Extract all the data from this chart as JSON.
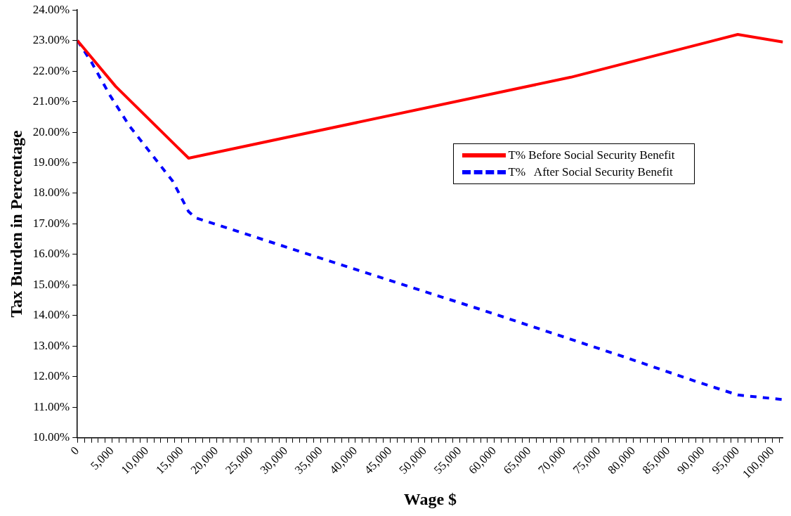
{
  "chart_data": {
    "type": "line",
    "xlabel": "Wage $",
    "ylabel": "Tax Burden in Percentage",
    "xlim": [
      0,
      101500
    ],
    "ylim": [
      10,
      24
    ],
    "xticks": [
      {
        "value": 0,
        "label": "0"
      },
      {
        "value": 1000,
        "label": null
      },
      {
        "value": 2000,
        "label": null
      },
      {
        "value": 3000,
        "label": null
      },
      {
        "value": 4000,
        "label": null
      },
      {
        "value": 5000,
        "label": "5,000"
      },
      {
        "value": 6000,
        "label": null
      },
      {
        "value": 7000,
        "label": null
      },
      {
        "value": 8000,
        "label": null
      },
      {
        "value": 9000,
        "label": null
      },
      {
        "value": 10000,
        "label": "10,000"
      },
      {
        "value": 11000,
        "label": null
      },
      {
        "value": 12000,
        "label": null
      },
      {
        "value": 13000,
        "label": null
      },
      {
        "value": 14000,
        "label": null
      },
      {
        "value": 15000,
        "label": "15,000"
      },
      {
        "value": 16000,
        "label": null
      },
      {
        "value": 17000,
        "label": null
      },
      {
        "value": 18000,
        "label": null
      },
      {
        "value": 19000,
        "label": null
      },
      {
        "value": 20000,
        "label": "20,000"
      },
      {
        "value": 21000,
        "label": null
      },
      {
        "value": 22000,
        "label": null
      },
      {
        "value": 23000,
        "label": null
      },
      {
        "value": 24000,
        "label": null
      },
      {
        "value": 25000,
        "label": "25,000"
      },
      {
        "value": 26000,
        "label": null
      },
      {
        "value": 27000,
        "label": null
      },
      {
        "value": 28000,
        "label": null
      },
      {
        "value": 29000,
        "label": null
      },
      {
        "value": 30000,
        "label": "30,000"
      },
      {
        "value": 31000,
        "label": null
      },
      {
        "value": 32000,
        "label": null
      },
      {
        "value": 33000,
        "label": null
      },
      {
        "value": 34000,
        "label": null
      },
      {
        "value": 35000,
        "label": "35,000"
      },
      {
        "value": 36000,
        "label": null
      },
      {
        "value": 37000,
        "label": null
      },
      {
        "value": 38000,
        "label": null
      },
      {
        "value": 39000,
        "label": null
      },
      {
        "value": 40000,
        "label": "40,000"
      },
      {
        "value": 41000,
        "label": null
      },
      {
        "value": 42000,
        "label": null
      },
      {
        "value": 43000,
        "label": null
      },
      {
        "value": 44000,
        "label": null
      },
      {
        "value": 45000,
        "label": "45,000"
      },
      {
        "value": 46000,
        "label": null
      },
      {
        "value": 47000,
        "label": null
      },
      {
        "value": 48000,
        "label": null
      },
      {
        "value": 49000,
        "label": null
      },
      {
        "value": 50000,
        "label": "50,000"
      },
      {
        "value": 51000,
        "label": null
      },
      {
        "value": 52000,
        "label": null
      },
      {
        "value": 53000,
        "label": null
      },
      {
        "value": 54000,
        "label": null
      },
      {
        "value": 55000,
        "label": "55,000"
      },
      {
        "value": 56000,
        "label": null
      },
      {
        "value": 57000,
        "label": null
      },
      {
        "value": 58000,
        "label": null
      },
      {
        "value": 59000,
        "label": null
      },
      {
        "value": 60000,
        "label": "60,000"
      },
      {
        "value": 61000,
        "label": null
      },
      {
        "value": 62000,
        "label": null
      },
      {
        "value": 63000,
        "label": null
      },
      {
        "value": 64000,
        "label": null
      },
      {
        "value": 65000,
        "label": "65,000"
      },
      {
        "value": 66000,
        "label": null
      },
      {
        "value": 67000,
        "label": null
      },
      {
        "value": 68000,
        "label": null
      },
      {
        "value": 69000,
        "label": null
      },
      {
        "value": 70000,
        "label": "70,000"
      },
      {
        "value": 71000,
        "label": null
      },
      {
        "value": 72000,
        "label": null
      },
      {
        "value": 73000,
        "label": null
      },
      {
        "value": 74000,
        "label": null
      },
      {
        "value": 75000,
        "label": "75,000"
      },
      {
        "value": 76000,
        "label": null
      },
      {
        "value": 77000,
        "label": null
      },
      {
        "value": 78000,
        "label": null
      },
      {
        "value": 79000,
        "label": null
      },
      {
        "value": 80000,
        "label": "80,000"
      },
      {
        "value": 81000,
        "label": null
      },
      {
        "value": 82000,
        "label": null
      },
      {
        "value": 83000,
        "label": null
      },
      {
        "value": 84000,
        "label": null
      },
      {
        "value": 85000,
        "label": "85,000"
      },
      {
        "value": 86000,
        "label": null
      },
      {
        "value": 87000,
        "label": null
      },
      {
        "value": 88000,
        "label": null
      },
      {
        "value": 89000,
        "label": null
      },
      {
        "value": 90000,
        "label": "90,000"
      },
      {
        "value": 91000,
        "label": null
      },
      {
        "value": 92000,
        "label": null
      },
      {
        "value": 93000,
        "label": null
      },
      {
        "value": 94000,
        "label": null
      },
      {
        "value": 95000,
        "label": "95,000"
      },
      {
        "value": 96000,
        "label": null
      },
      {
        "value": 97000,
        "label": null
      },
      {
        "value": 98000,
        "label": null
      },
      {
        "value": 99000,
        "label": null
      },
      {
        "value": 100000,
        "label": "100,000"
      },
      {
        "value": 101000,
        "label": null
      }
    ],
    "yticks": [
      {
        "value": 10,
        "label": "10.00%"
      },
      {
        "value": 11,
        "label": "11.00%"
      },
      {
        "value": 12,
        "label": "12.00%"
      },
      {
        "value": 13,
        "label": "13.00%"
      },
      {
        "value": 14,
        "label": "14.00%"
      },
      {
        "value": 15,
        "label": "15.00%"
      },
      {
        "value": 16,
        "label": "16.00%"
      },
      {
        "value": 17,
        "label": "17.00%"
      },
      {
        "value": 18,
        "label": "18.00%"
      },
      {
        "value": 19,
        "label": "19.00%"
      },
      {
        "value": 20,
        "label": "20.00%"
      },
      {
        "value": 21,
        "label": "21.00%"
      },
      {
        "value": 22,
        "label": "22.00%"
      },
      {
        "value": 23,
        "label": "23.00%"
      },
      {
        "value": 24,
        "label": "24.00%"
      }
    ],
    "grid": false,
    "legend": "right",
    "marker": "none",
    "series": [
      {
        "name": "T% Before Social Security Benefit",
        "color": "#ff0000",
        "line_style": "solid",
        "x": [
          0,
          5500,
          16000,
          71000,
          95000,
          101500
        ],
        "values": [
          23.0,
          21.5,
          19.15,
          21.8,
          23.2,
          22.95
        ]
      },
      {
        "name": "T%   After Social Security Benefit",
        "color": "#0000ff",
        "line_style": "dashed",
        "x": [
          0,
          2000,
          4700,
          7500,
          10600,
          13700,
          16000,
          17000,
          37400,
          58000,
          78600,
          88900,
          95000,
          101500
        ],
        "values": [
          23.0,
          22.3,
          21.2,
          20.2,
          19.3,
          18.4,
          17.4,
          17.2,
          15.7,
          14.2,
          12.65,
          11.85,
          11.4,
          11.25
        ]
      }
    ]
  }
}
